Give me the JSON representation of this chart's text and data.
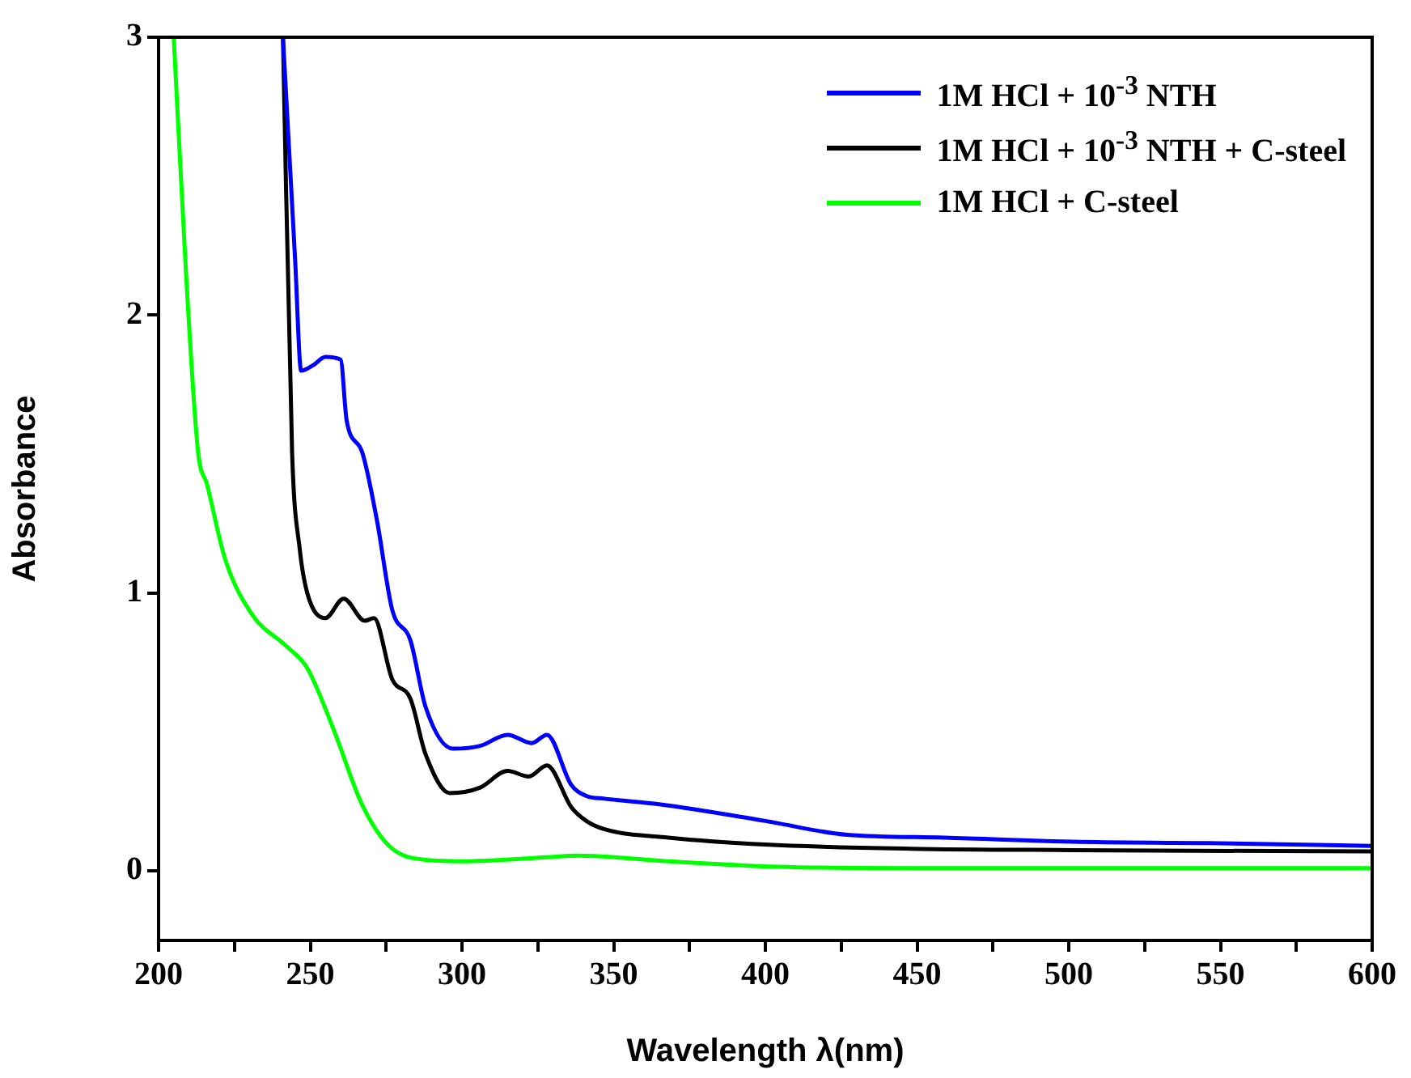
{
  "chart_data": {
    "type": "line",
    "xlabel": "Wavelength λ(nm)",
    "ylabel": "Absorbance",
    "xlim": [
      200,
      600
    ],
    "ylim": [
      -0.25,
      3
    ],
    "xticks": [
      200,
      {
        "value": 225,
        "label": null
      },
      250,
      {
        "value": 275,
        "label": null
      },
      300,
      {
        "value": 325,
        "label": null
      },
      350,
      {
        "value": 375,
        "label": null
      },
      400,
      {
        "value": 425,
        "label": null
      },
      450,
      {
        "value": 475,
        "label": null
      },
      500,
      {
        "value": 525,
        "label": null
      },
      550,
      {
        "value": 575,
        "label": null
      },
      600
    ],
    "yticks": [
      0,
      1,
      2,
      3
    ],
    "grid": false,
    "legend": "top right",
    "marker": "none",
    "line_style": "solid",
    "series": [
      {
        "name": "1M HCl + 10$^{-3}$ NTH",
        "color": "#0000ff",
        "x": [
          241,
          245,
          247,
          251,
          255,
          260,
          262,
          267,
          272,
          277,
          283,
          288,
          297,
          306,
          315,
          323,
          328,
          336,
          341,
          347,
          365,
          400,
          427,
          459,
          501,
          546,
          600
        ],
        "values": [
          3,
          2.2,
          1.8,
          1.82,
          1.85,
          1.84,
          1.62,
          1.51,
          1.26,
          0.94,
          0.83,
          0.59,
          0.44,
          0.45,
          0.49,
          0.46,
          0.49,
          0.31,
          0.27,
          0.26,
          0.24,
          0.18,
          0.13,
          0.12,
          0.105,
          0.1,
          0.09
        ]
      },
      {
        "name": "1M HCl + 10$^{-3}$ NTH + C-steel",
        "color": "#000000",
        "x": [
          241,
          244,
          246.5,
          249,
          255,
          261,
          268,
          271,
          277,
          283,
          288,
          296,
          306,
          315,
          322,
          328,
          336,
          341,
          347,
          368,
          400,
          448,
          501,
          600
        ],
        "values": [
          3,
          1.51,
          1.16,
          1.0,
          0.91,
          0.98,
          0.9,
          0.91,
          0.69,
          0.62,
          0.42,
          0.28,
          0.3,
          0.36,
          0.34,
          0.38,
          0.23,
          0.18,
          0.15,
          0.12,
          0.095,
          0.08,
          0.075,
          0.07
        ]
      },
      {
        "name": "1M HCl + C-steel",
        "color": "#00ff00",
        "x": [
          205,
          209,
          213,
          216,
          222,
          231,
          242,
          249,
          258,
          267,
          276,
          288,
          302,
          329,
          338,
          368,
          404,
          450,
          600
        ],
        "values": [
          3,
          2.16,
          1.51,
          1.39,
          1.12,
          0.92,
          0.81,
          0.73,
          0.5,
          0.24,
          0.09,
          0.04,
          0.035,
          0.05,
          0.055,
          0.035,
          0.015,
          0.01,
          0.01
        ]
      }
    ]
  }
}
